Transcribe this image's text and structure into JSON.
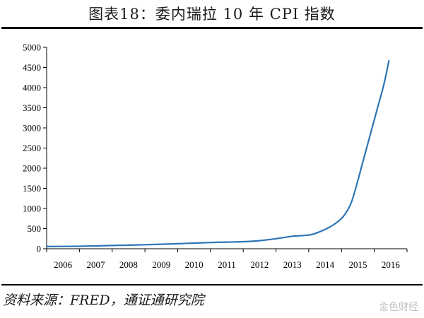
{
  "header": {
    "title": "图表18：委内瑞拉 10 年 CPI 指数"
  },
  "footer": {
    "source": "资料来源：FRED，通证通研究院",
    "watermark": "金色财经"
  },
  "colors": {
    "line": "#2e75b6",
    "axis": "#000000"
  },
  "chart_data": {
    "type": "line",
    "title": "图表18：委内瑞拉 10 年 CPI 指数",
    "xlabel": "",
    "ylabel": "",
    "x_tick_labels": [
      "2006",
      "2007",
      "2008",
      "2009",
      "2010",
      "2011",
      "2012",
      "2013",
      "2014",
      "2015",
      "2016"
    ],
    "y_tick_labels": [
      "0",
      "500",
      "1000",
      "1500",
      "2000",
      "2500",
      "3000",
      "3500",
      "4000",
      "4500",
      "5000"
    ],
    "xlim": [
      2006,
      2017
    ],
    "ylim": [
      0,
      5000
    ],
    "grid": false,
    "series": [
      {
        "x": [
          2006.0,
          2006.5,
          2007.0,
          2007.5,
          2008.0,
          2008.5,
          2009.0,
          2009.5,
          2010.0,
          2010.5,
          2011.0,
          2011.5,
          2012.0,
          2012.5,
          2013.0,
          2013.5,
          2014.0,
          2014.3,
          2014.6,
          2014.9,
          2015.1,
          2015.3,
          2015.5,
          2015.7,
          2015.9,
          2016.1,
          2016.3,
          2016.45
        ],
        "y": [
          55,
          58,
          62,
          70,
          80,
          90,
          100,
          112,
          125,
          140,
          155,
          165,
          175,
          200,
          250,
          310,
          340,
          410,
          520,
          680,
          850,
          1150,
          1700,
          2300,
          2900,
          3500,
          4100,
          4680
        ]
      }
    ]
  }
}
